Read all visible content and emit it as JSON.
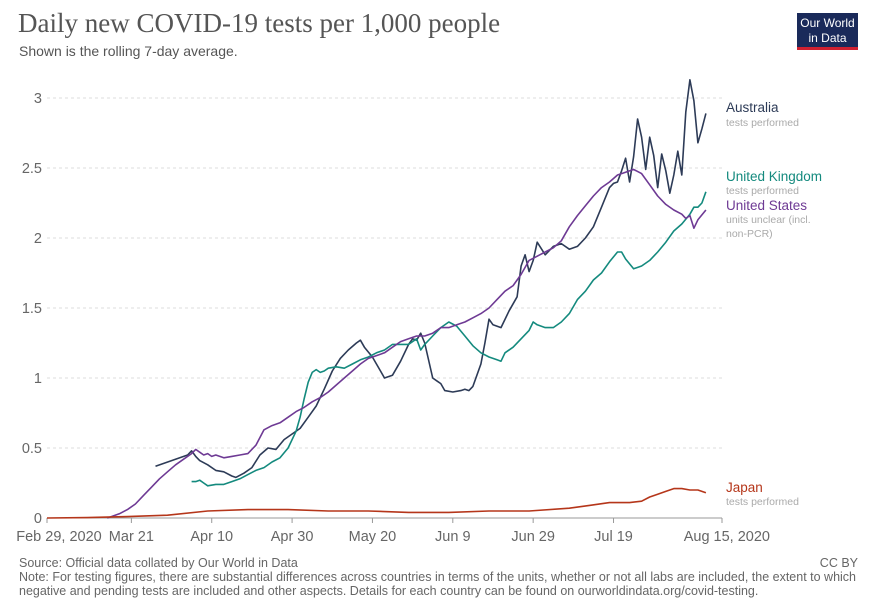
{
  "header": {
    "title": "Daily new COVID-19 tests per 1,000 people",
    "subtitle": "Shown is the rolling 7-day average.",
    "logo_line1": "Our World",
    "logo_line2": "in Data"
  },
  "footer": {
    "source": "Source: Official data collated by Our World in Data",
    "license": "CC BY",
    "note": "Note: For testing figures, there are substantial differences across countries in terms of the units, whether or not all labs are included, the extent to which negative and pending tests are included and other aspects. Details for each country can be found on ourworldindata.org/covid-testing."
  },
  "colors": {
    "australia": "#2d3b57",
    "uk": "#148a7e",
    "us": "#6e3a94",
    "japan": "#b5361a",
    "grid": "#dddddd",
    "axis_text": "#666666",
    "sublabel": "#aaaaaa"
  },
  "chart_data": {
    "type": "line",
    "title": "Daily new COVID-19 tests per 1,000 people",
    "xlabel": "",
    "ylabel": "",
    "xlim": [
      0,
      168
    ],
    "ylim": [
      0,
      3.2
    ],
    "x_ticks": [
      {
        "day": 0,
        "label": "Feb 29, 2020"
      },
      {
        "day": 21,
        "label": "Mar 21"
      },
      {
        "day": 41,
        "label": "Apr 10"
      },
      {
        "day": 61,
        "label": "Apr 30"
      },
      {
        "day": 81,
        "label": "May 20"
      },
      {
        "day": 101,
        "label": "Jun 9"
      },
      {
        "day": 121,
        "label": "Jun 29"
      },
      {
        "day": 141,
        "label": "Jul 19"
      },
      {
        "day": 168,
        "label": "Aug 15, 2020"
      }
    ],
    "y_ticks": [
      {
        "value": 0,
        "label": "0"
      },
      {
        "value": 0.5,
        "label": "0.5"
      },
      {
        "value": 1,
        "label": "1"
      },
      {
        "value": 1.5,
        "label": "1.5"
      },
      {
        "value": 2,
        "label": "2"
      },
      {
        "value": 2.5,
        "label": "2.5"
      },
      {
        "value": 3,
        "label": "3"
      }
    ],
    "series": [
      {
        "key": "australia",
        "name": "Australia",
        "sublabel": "tests performed",
        "points": [
          [
            27,
            0.37
          ],
          [
            31,
            0.41
          ],
          [
            35,
            0.45
          ],
          [
            36,
            0.48
          ],
          [
            37,
            0.44
          ],
          [
            38,
            0.41
          ],
          [
            40,
            0.38
          ],
          [
            42,
            0.34
          ],
          [
            44,
            0.33
          ],
          [
            46,
            0.3
          ],
          [
            47,
            0.29
          ],
          [
            49,
            0.32
          ],
          [
            51,
            0.36
          ],
          [
            53,
            0.45
          ],
          [
            55,
            0.5
          ],
          [
            57,
            0.49
          ],
          [
            59,
            0.56
          ],
          [
            61,
            0.6
          ],
          [
            63,
            0.64
          ],
          [
            65,
            0.72
          ],
          [
            67,
            0.8
          ],
          [
            69,
            0.92
          ],
          [
            71,
            1.05
          ],
          [
            73,
            1.14
          ],
          [
            75,
            1.2
          ],
          [
            77,
            1.25
          ],
          [
            78,
            1.27
          ],
          [
            79,
            1.22
          ],
          [
            81,
            1.15
          ],
          [
            83,
            1.05
          ],
          [
            84,
            1.0
          ],
          [
            86,
            1.02
          ],
          [
            88,
            1.12
          ],
          [
            90,
            1.24
          ],
          [
            91,
            1.28
          ],
          [
            92,
            1.27
          ],
          [
            93,
            1.32
          ],
          [
            94,
            1.25
          ],
          [
            96,
            1.0
          ],
          [
            97,
            0.98
          ],
          [
            98,
            0.96
          ],
          [
            99,
            0.91
          ],
          [
            101,
            0.9
          ],
          [
            103,
            0.91
          ],
          [
            104,
            0.92
          ],
          [
            105,
            0.91
          ],
          [
            106,
            0.94
          ],
          [
            108,
            1.1
          ],
          [
            109,
            1.25
          ],
          [
            110,
            1.42
          ],
          [
            111,
            1.38
          ],
          [
            113,
            1.36
          ],
          [
            115,
            1.48
          ],
          [
            117,
            1.58
          ],
          [
            118,
            1.8
          ],
          [
            119,
            1.88
          ],
          [
            120,
            1.76
          ],
          [
            121,
            1.84
          ],
          [
            122,
            1.97
          ],
          [
            124,
            1.88
          ],
          [
            126,
            1.94
          ],
          [
            128,
            1.96
          ],
          [
            130,
            1.92
          ],
          [
            132,
            1.94
          ],
          [
            134,
            2.0
          ],
          [
            136,
            2.08
          ],
          [
            138,
            2.22
          ],
          [
            140,
            2.36
          ],
          [
            141,
            2.39
          ],
          [
            142,
            2.4
          ],
          [
            143,
            2.48
          ],
          [
            144,
            2.57
          ],
          [
            145,
            2.4
          ],
          [
            146,
            2.58
          ],
          [
            147,
            2.85
          ],
          [
            148,
            2.72
          ],
          [
            149,
            2.49
          ],
          [
            150,
            2.72
          ],
          [
            151,
            2.59
          ],
          [
            152,
            2.36
          ],
          [
            153,
            2.6
          ],
          [
            154,
            2.48
          ],
          [
            155,
            2.32
          ],
          [
            156,
            2.45
          ],
          [
            157,
            2.62
          ],
          [
            158,
            2.45
          ],
          [
            159,
            2.9
          ],
          [
            160,
            3.13
          ],
          [
            161,
            2.98
          ],
          [
            162,
            2.68
          ],
          [
            163,
            2.78
          ],
          [
            164,
            2.89
          ]
        ]
      },
      {
        "key": "uk",
        "name": "United Kingdom",
        "sublabel": "tests performed",
        "points": [
          [
            36,
            0.26
          ],
          [
            37,
            0.26
          ],
          [
            38,
            0.27
          ],
          [
            39,
            0.25
          ],
          [
            40,
            0.23
          ],
          [
            42,
            0.24
          ],
          [
            44,
            0.24
          ],
          [
            46,
            0.26
          ],
          [
            48,
            0.28
          ],
          [
            50,
            0.31
          ],
          [
            52,
            0.34
          ],
          [
            54,
            0.36
          ],
          [
            56,
            0.4
          ],
          [
            58,
            0.43
          ],
          [
            60,
            0.5
          ],
          [
            62,
            0.62
          ],
          [
            63,
            0.72
          ],
          [
            64,
            0.85
          ],
          [
            65,
            0.97
          ],
          [
            66,
            1.04
          ],
          [
            67,
            1.06
          ],
          [
            68,
            1.04
          ],
          [
            69,
            1.05
          ],
          [
            70,
            1.07
          ],
          [
            72,
            1.08
          ],
          [
            74,
            1.07
          ],
          [
            76,
            1.1
          ],
          [
            78,
            1.13
          ],
          [
            80,
            1.15
          ],
          [
            82,
            1.18
          ],
          [
            84,
            1.2
          ],
          [
            86,
            1.24
          ],
          [
            88,
            1.24
          ],
          [
            90,
            1.24
          ],
          [
            92,
            1.28
          ],
          [
            93,
            1.2
          ],
          [
            94,
            1.24
          ],
          [
            96,
            1.3
          ],
          [
            98,
            1.36
          ],
          [
            100,
            1.4
          ],
          [
            102,
            1.37
          ],
          [
            104,
            1.3
          ],
          [
            106,
            1.23
          ],
          [
            108,
            1.18
          ],
          [
            110,
            1.15
          ],
          [
            112,
            1.13
          ],
          [
            113,
            1.12
          ],
          [
            114,
            1.18
          ],
          [
            116,
            1.22
          ],
          [
            118,
            1.28
          ],
          [
            120,
            1.34
          ],
          [
            121,
            1.4
          ],
          [
            122,
            1.38
          ],
          [
            124,
            1.36
          ],
          [
            126,
            1.36
          ],
          [
            128,
            1.4
          ],
          [
            130,
            1.46
          ],
          [
            132,
            1.56
          ],
          [
            134,
            1.62
          ],
          [
            136,
            1.7
          ],
          [
            138,
            1.75
          ],
          [
            140,
            1.83
          ],
          [
            142,
            1.9
          ],
          [
            143,
            1.9
          ],
          [
            144,
            1.85
          ],
          [
            146,
            1.78
          ],
          [
            148,
            1.8
          ],
          [
            150,
            1.84
          ],
          [
            152,
            1.9
          ],
          [
            154,
            1.97
          ],
          [
            156,
            2.05
          ],
          [
            158,
            2.1
          ],
          [
            160,
            2.17
          ],
          [
            161,
            2.22
          ],
          [
            162,
            2.22
          ],
          [
            163,
            2.25
          ],
          [
            164,
            2.33
          ]
        ]
      },
      {
        "key": "us",
        "name": "United States",
        "sublabel": "units unclear (incl. non-PCR)",
        "points": [
          [
            15,
            0.0
          ],
          [
            16,
            0.01
          ],
          [
            18,
            0.03
          ],
          [
            20,
            0.06
          ],
          [
            22,
            0.1
          ],
          [
            24,
            0.16
          ],
          [
            26,
            0.22
          ],
          [
            28,
            0.28
          ],
          [
            30,
            0.33
          ],
          [
            32,
            0.38
          ],
          [
            34,
            0.42
          ],
          [
            36,
            0.46
          ],
          [
            37,
            0.49
          ],
          [
            38,
            0.47
          ],
          [
            39,
            0.45
          ],
          [
            40,
            0.46
          ],
          [
            41,
            0.44
          ],
          [
            42,
            0.45
          ],
          [
            44,
            0.43
          ],
          [
            46,
            0.44
          ],
          [
            48,
            0.45
          ],
          [
            50,
            0.46
          ],
          [
            52,
            0.52
          ],
          [
            54,
            0.63
          ],
          [
            56,
            0.66
          ],
          [
            58,
            0.68
          ],
          [
            60,
            0.72
          ],
          [
            62,
            0.76
          ],
          [
            64,
            0.79
          ],
          [
            66,
            0.83
          ],
          [
            68,
            0.86
          ],
          [
            70,
            0.9
          ],
          [
            72,
            0.95
          ],
          [
            74,
            1.0
          ],
          [
            76,
            1.05
          ],
          [
            78,
            1.1
          ],
          [
            80,
            1.14
          ],
          [
            82,
            1.16
          ],
          [
            84,
            1.18
          ],
          [
            86,
            1.22
          ],
          [
            88,
            1.26
          ],
          [
            90,
            1.28
          ],
          [
            92,
            1.3
          ],
          [
            94,
            1.3
          ],
          [
            96,
            1.32
          ],
          [
            98,
            1.36
          ],
          [
            100,
            1.36
          ],
          [
            102,
            1.38
          ],
          [
            104,
            1.4
          ],
          [
            106,
            1.43
          ],
          [
            108,
            1.46
          ],
          [
            110,
            1.5
          ],
          [
            112,
            1.56
          ],
          [
            114,
            1.62
          ],
          [
            116,
            1.66
          ],
          [
            118,
            1.74
          ],
          [
            120,
            1.84
          ],
          [
            122,
            1.87
          ],
          [
            124,
            1.9
          ],
          [
            126,
            1.93
          ],
          [
            128,
            1.98
          ],
          [
            130,
            2.08
          ],
          [
            132,
            2.16
          ],
          [
            134,
            2.23
          ],
          [
            136,
            2.3
          ],
          [
            138,
            2.36
          ],
          [
            140,
            2.4
          ],
          [
            142,
            2.45
          ],
          [
            144,
            2.47
          ],
          [
            146,
            2.49
          ],
          [
            148,
            2.46
          ],
          [
            150,
            2.38
          ],
          [
            152,
            2.3
          ],
          [
            154,
            2.24
          ],
          [
            156,
            2.2
          ],
          [
            158,
            2.17
          ],
          [
            159,
            2.14
          ],
          [
            160,
            2.16
          ],
          [
            161,
            2.07
          ],
          [
            162,
            2.13
          ],
          [
            164,
            2.2
          ]
        ]
      },
      {
        "key": "japan",
        "name": "Japan",
        "sublabel": "tests performed",
        "points": [
          [
            0,
            0.0
          ],
          [
            10,
            0.003
          ],
          [
            20,
            0.01
          ],
          [
            30,
            0.02
          ],
          [
            40,
            0.05
          ],
          [
            50,
            0.06
          ],
          [
            60,
            0.06
          ],
          [
            70,
            0.05
          ],
          [
            80,
            0.05
          ],
          [
            90,
            0.04
          ],
          [
            100,
            0.04
          ],
          [
            110,
            0.05
          ],
          [
            120,
            0.05
          ],
          [
            130,
            0.07
          ],
          [
            135,
            0.09
          ],
          [
            140,
            0.11
          ],
          [
            145,
            0.11
          ],
          [
            148,
            0.12
          ],
          [
            150,
            0.15
          ],
          [
            152,
            0.17
          ],
          [
            154,
            0.19
          ],
          [
            156,
            0.21
          ],
          [
            158,
            0.21
          ],
          [
            160,
            0.2
          ],
          [
            162,
            0.2
          ],
          [
            164,
            0.18
          ]
        ]
      }
    ]
  }
}
